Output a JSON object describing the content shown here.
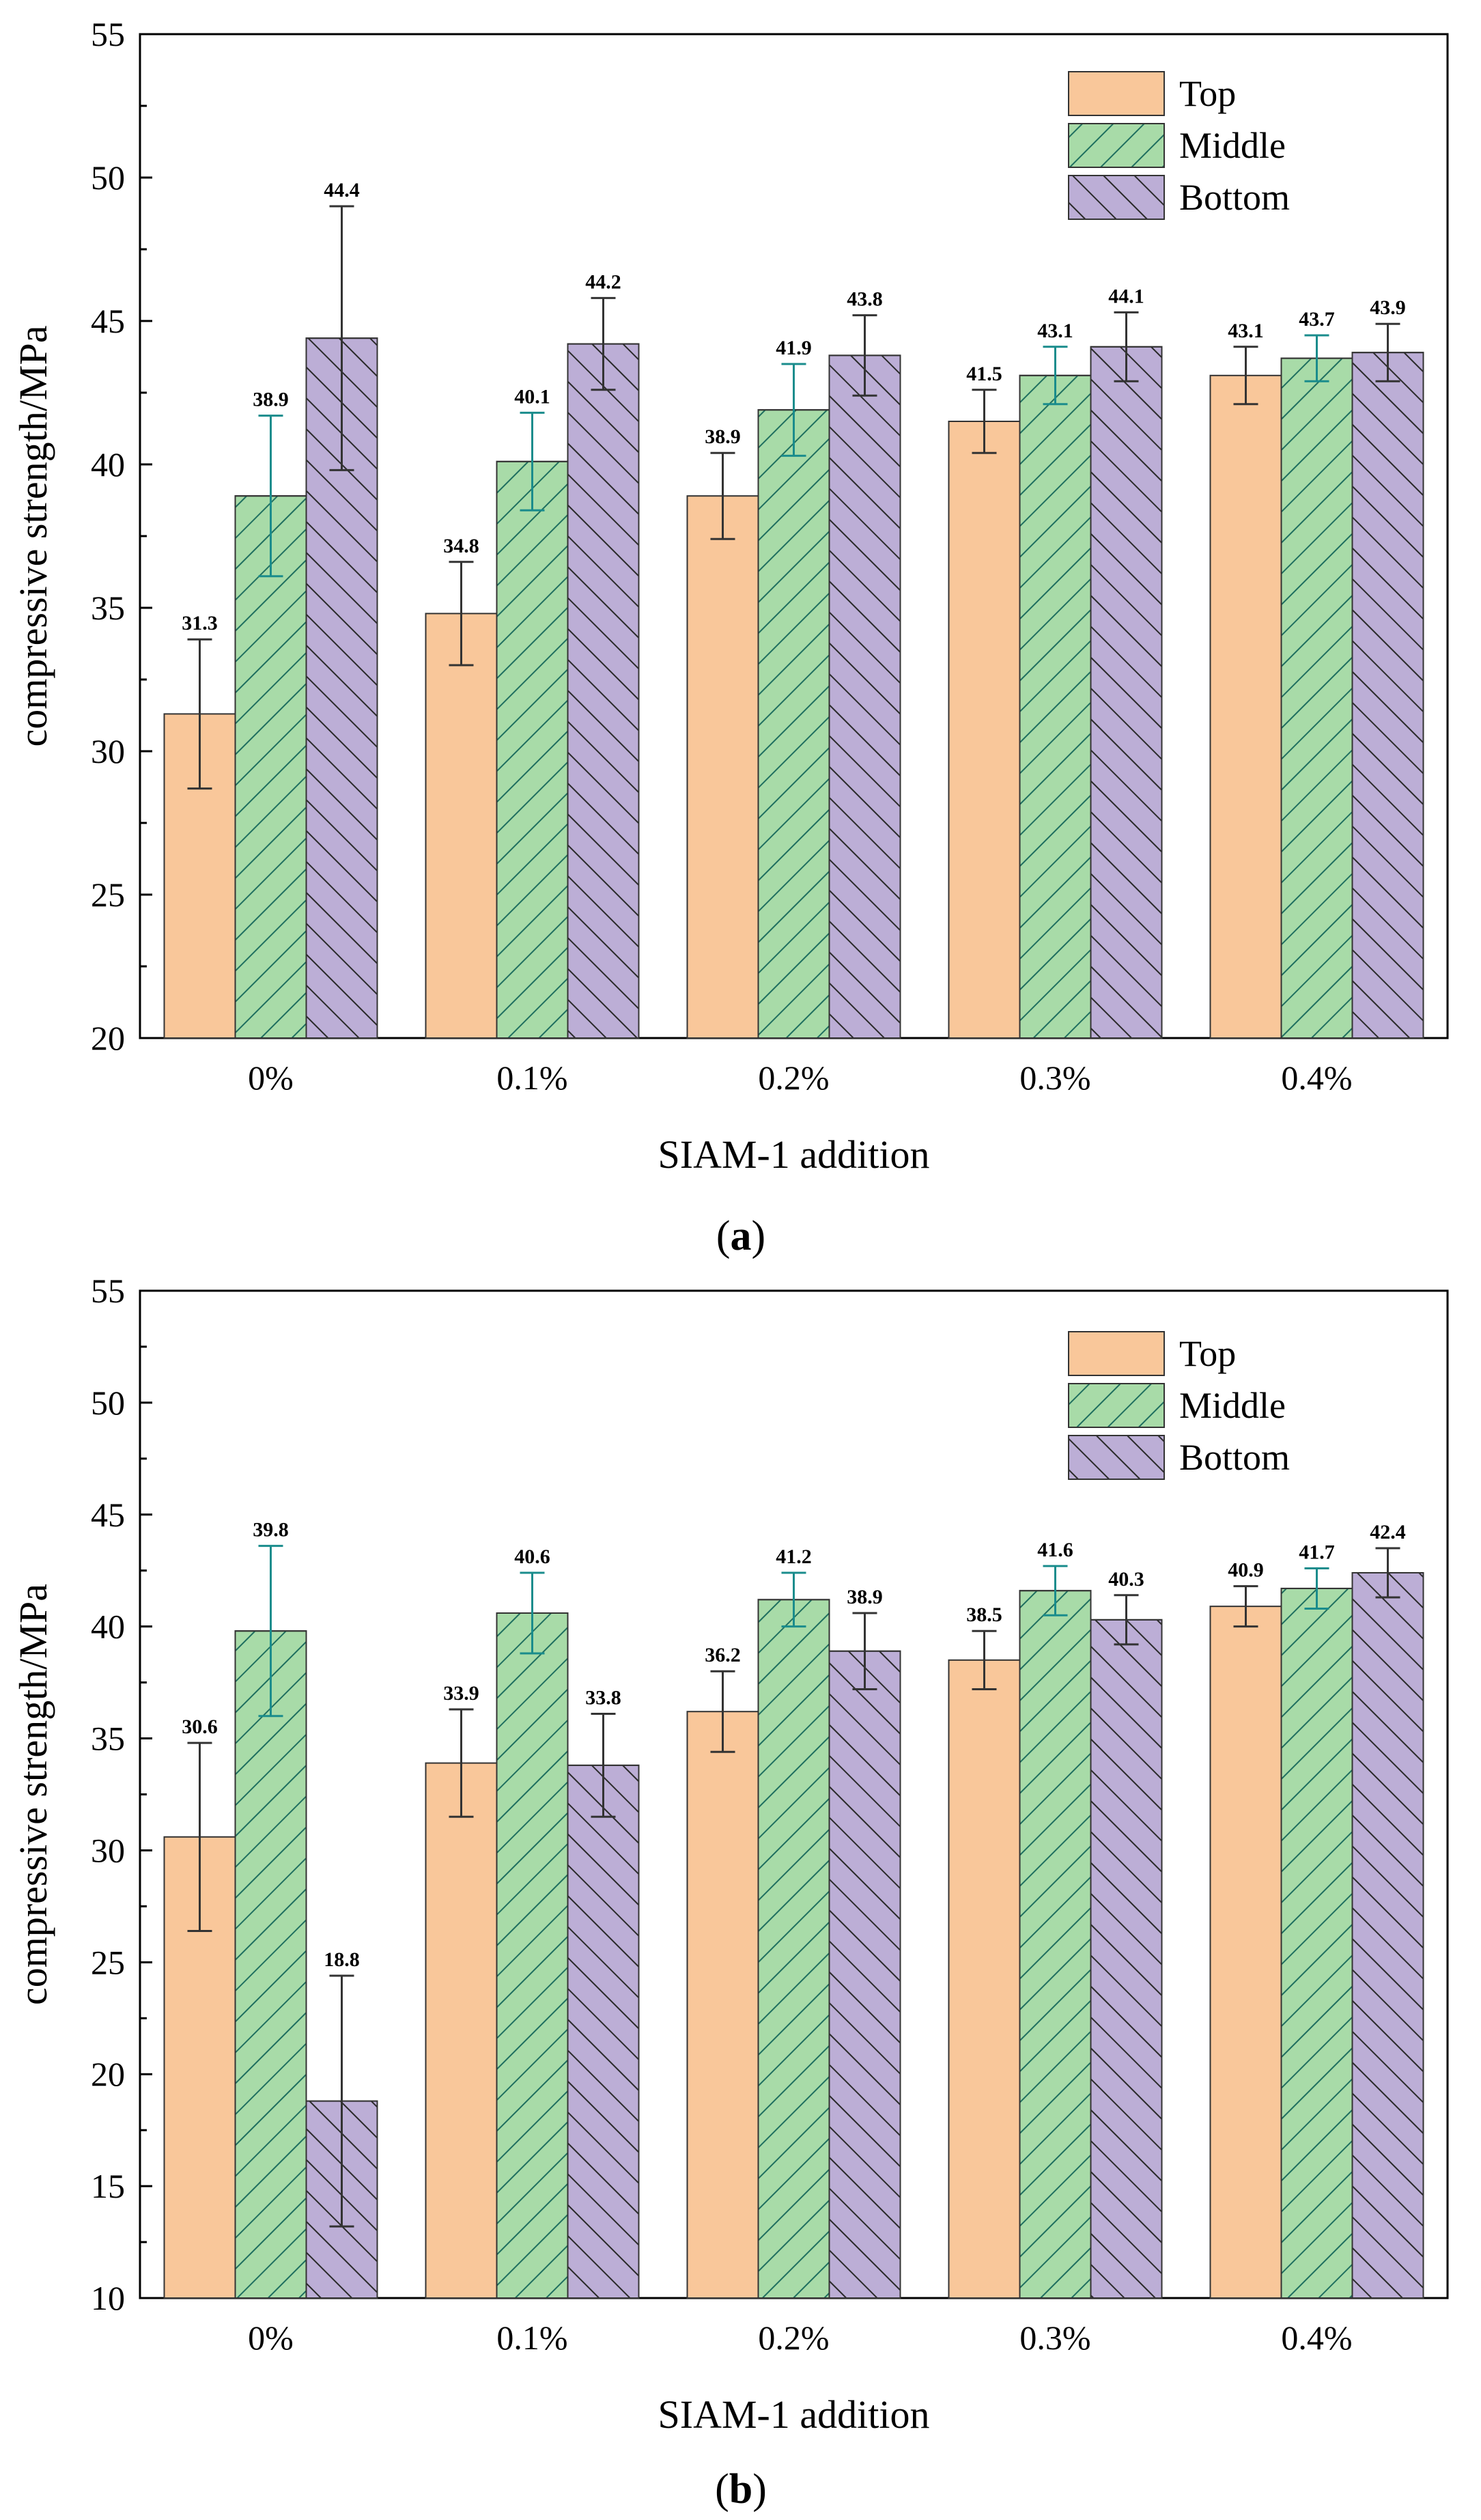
{
  "chart_data": [
    {
      "type": "bar",
      "panel": "a",
      "caption_open": "(",
      "caption_letter": "a",
      "caption_close": ")",
      "categories": [
        "0%",
        "0.1%",
        "0.2%",
        "0.3%",
        "0.4%"
      ],
      "series": [
        {
          "name": "Top",
          "values": [
            31.3,
            34.8,
            38.9,
            41.5,
            43.1
          ],
          "err": [
            2.6,
            1.8,
            1.5,
            1.1,
            1.0
          ],
          "color": "#F9C79A",
          "pattern": "none",
          "err_color": "#333333"
        },
        {
          "name": "Middle",
          "values": [
            38.9,
            40.1,
            41.9,
            43.1,
            43.7
          ],
          "err": [
            2.8,
            1.7,
            1.6,
            1.0,
            0.8
          ],
          "color": "#A8DBA8",
          "pattern": "forward",
          "err_color": "#1A8C8C"
        },
        {
          "name": "Bottom",
          "values": [
            44.4,
            44.2,
            43.8,
            44.1,
            43.9
          ],
          "err": [
            4.6,
            1.6,
            1.4,
            1.2,
            1.0
          ],
          "color": "#BCAED6",
          "pattern": "back",
          "err_color": "#333333"
        }
      ],
      "xlabel": "SIAM-1 addition",
      "ylabel": "compressive strength/MPa",
      "ylim": [
        20,
        55
      ],
      "yticks": [
        20,
        25,
        30,
        35,
        40,
        45,
        50,
        55
      ],
      "legend": "top-right"
    },
    {
      "type": "bar",
      "panel": "b",
      "caption_open": "(",
      "caption_letter": "b",
      "caption_close": ")",
      "categories": [
        "0%",
        "0.1%",
        "0.2%",
        "0.3%",
        "0.4%"
      ],
      "series": [
        {
          "name": "Top",
          "values": [
            30.6,
            33.9,
            36.2,
            38.5,
            40.9
          ],
          "err": [
            4.2,
            2.4,
            1.8,
            1.3,
            0.9
          ],
          "color": "#F9C79A",
          "pattern": "none",
          "err_color": "#333333"
        },
        {
          "name": "Middle",
          "values": [
            39.8,
            40.6,
            41.2,
            41.6,
            41.7
          ],
          "err": [
            3.8,
            1.8,
            1.2,
            1.1,
            0.9
          ],
          "color": "#A8DBA8",
          "pattern": "forward",
          "err_color": "#1A8C8C"
        },
        {
          "name": "Bottom",
          "values": [
            18.8,
            33.8,
            38.9,
            40.3,
            42.4
          ],
          "err": [
            5.6,
            2.3,
            1.7,
            1.1,
            1.1
          ],
          "color": "#BCAED6",
          "pattern": "back",
          "err_color": "#333333"
        }
      ],
      "xlabel": "SIAM-1 addition",
      "ylabel": "compressive strength/MPa",
      "ylim": [
        10,
        55
      ],
      "yticks": [
        10,
        15,
        20,
        25,
        30,
        35,
        40,
        45,
        50,
        55
      ],
      "legend": "top-right"
    }
  ]
}
